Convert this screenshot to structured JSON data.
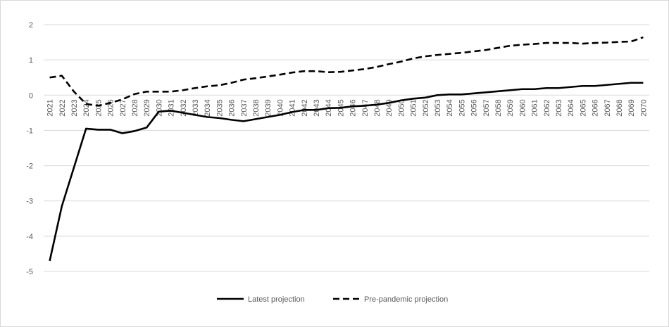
{
  "chart_data": {
    "type": "line",
    "title": "",
    "xlabel": "",
    "ylabel": "",
    "ylim": [
      -5,
      2
    ],
    "yticks": [
      2,
      1,
      0,
      -1,
      -2,
      -3,
      -4,
      -5
    ],
    "grid": "horizontal",
    "legend_position": "bottom",
    "x": [
      2021,
      2022,
      2023,
      2024,
      2025,
      2026,
      2027,
      2028,
      2029,
      2030,
      2031,
      2032,
      2033,
      2034,
      2035,
      2036,
      2037,
      2038,
      2039,
      2040,
      2041,
      2042,
      2043,
      2044,
      2045,
      2046,
      2047,
      2048,
      2049,
      2050,
      2051,
      2052,
      2053,
      2054,
      2055,
      2056,
      2057,
      2058,
      2059,
      2060,
      2061,
      2062,
      2063,
      2064,
      2065,
      2066,
      2067,
      2068,
      2069,
      2070
    ],
    "series": [
      {
        "name": "Latest projection",
        "style": "solid",
        "color": "#000000",
        "values": [
          -4.7,
          -3.15,
          -2.05,
          -0.95,
          -0.98,
          -0.98,
          -1.08,
          -1.02,
          -0.92,
          -0.47,
          -0.44,
          -0.5,
          -0.56,
          -0.62,
          -0.65,
          -0.7,
          -0.74,
          -0.68,
          -0.62,
          -0.56,
          -0.48,
          -0.42,
          -0.42,
          -0.37,
          -0.36,
          -0.32,
          -0.3,
          -0.27,
          -0.22,
          -0.15,
          -0.1,
          -0.07,
          0.0,
          0.02,
          0.02,
          0.05,
          0.08,
          0.11,
          0.14,
          0.17,
          0.17,
          0.2,
          0.2,
          0.23,
          0.26,
          0.26,
          0.29,
          0.32,
          0.35,
          0.35
        ]
      },
      {
        "name": "Pre-pandemic projection",
        "style": "dashed",
        "color": "#000000",
        "values": [
          0.5,
          0.55,
          0.1,
          -0.25,
          -0.3,
          -0.22,
          -0.12,
          0.03,
          0.1,
          0.1,
          0.1,
          0.14,
          0.2,
          0.25,
          0.28,
          0.35,
          0.44,
          0.48,
          0.53,
          0.58,
          0.64,
          0.68,
          0.68,
          0.65,
          0.66,
          0.7,
          0.74,
          0.8,
          0.88,
          0.95,
          1.04,
          1.1,
          1.14,
          1.17,
          1.2,
          1.24,
          1.28,
          1.34,
          1.4,
          1.43,
          1.45,
          1.48,
          1.48,
          1.48,
          1.46,
          1.48,
          1.49,
          1.51,
          1.52,
          1.64
        ]
      }
    ]
  }
}
